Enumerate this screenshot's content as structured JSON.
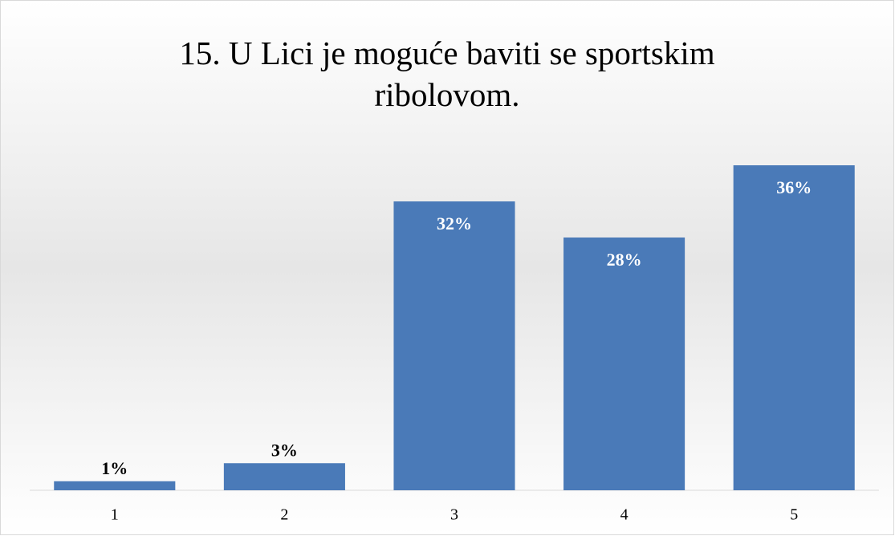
{
  "chart_data": {
    "type": "bar",
    "title": "15. U Lici je moguće baviti se sportskim ribolovom.",
    "categories": [
      "1",
      "2",
      "3",
      "4",
      "5"
    ],
    "values": [
      1,
      3,
      32,
      28,
      36
    ],
    "value_labels": [
      "1%",
      "3%",
      "32%",
      "28%",
      "36%"
    ],
    "color": "#4a7ab8"
  }
}
